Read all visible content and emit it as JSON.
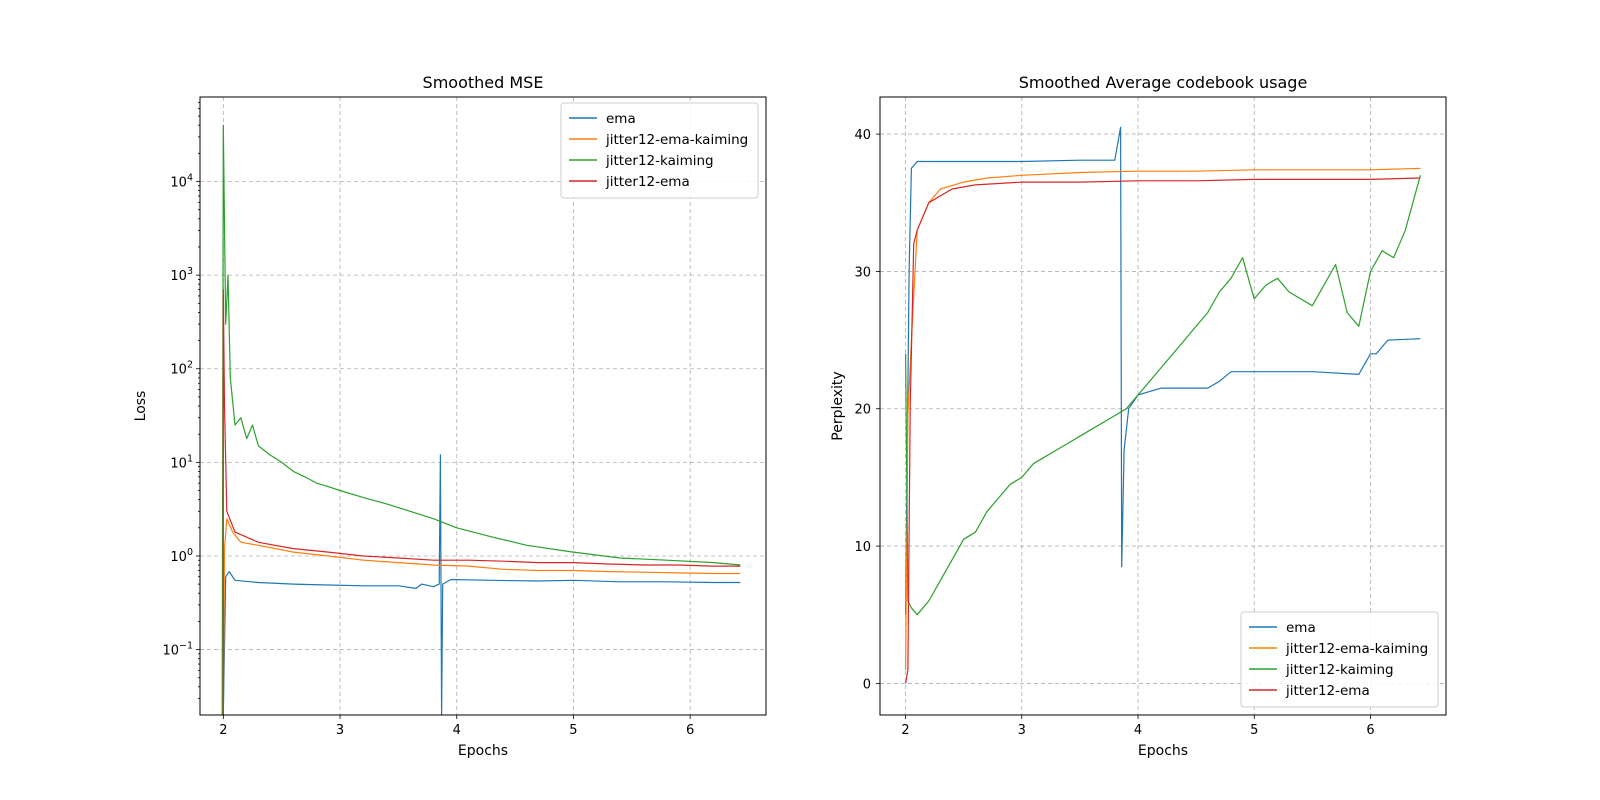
{
  "chart_data": [
    {
      "type": "line",
      "title": "Smoothed MSE",
      "xlabel": "Epochs",
      "ylabel": "Loss",
      "xlim": [
        1.8,
        6.65
      ],
      "ylim": [
        0.02,
        80000
      ],
      "yscale": "log",
      "xticks": [
        2,
        3,
        4,
        5,
        6
      ],
      "yticks": [
        {
          "value": 0.1,
          "mantissa": "10",
          "exp": "−1"
        },
        {
          "value": 1,
          "mantissa": "10",
          "exp": "0"
        },
        {
          "value": 10,
          "mantissa": "10",
          "exp": "1"
        },
        {
          "value": 100,
          "mantissa": "10",
          "exp": "2"
        },
        {
          "value": 1000,
          "mantissa": "10",
          "exp": "3"
        },
        {
          "value": 10000,
          "mantissa": "10",
          "exp": "4"
        }
      ],
      "grid": true,
      "legend_position": "top-right",
      "series": [
        {
          "name": "ema",
          "color": "#1f77b4",
          "points": [
            [
              2.0,
              0.02
            ],
            [
              2.02,
              0.6
            ],
            [
              2.05,
              0.68
            ],
            [
              2.1,
              0.55
            ],
            [
              2.3,
              0.52
            ],
            [
              2.6,
              0.5
            ],
            [
              2.9,
              0.49
            ],
            [
              3.2,
              0.48
            ],
            [
              3.5,
              0.48
            ],
            [
              3.65,
              0.45
            ],
            [
              3.7,
              0.5
            ],
            [
              3.8,
              0.47
            ],
            [
              3.85,
              0.5
            ],
            [
              3.86,
              12
            ],
            [
              3.87,
              0.02
            ],
            [
              3.88,
              0.5
            ],
            [
              3.95,
              0.56
            ],
            [
              4.3,
              0.55
            ],
            [
              4.7,
              0.54
            ],
            [
              5.0,
              0.55
            ],
            [
              5.4,
              0.53
            ],
            [
              5.8,
              0.53
            ],
            [
              6.2,
              0.52
            ],
            [
              6.43,
              0.52
            ]
          ]
        },
        {
          "name": "jitter12-ema-kaiming",
          "color": "#ff7f0e",
          "points": [
            [
              2.0,
              0.02
            ],
            [
              2.01,
              1.2
            ],
            [
              2.03,
              2.5
            ],
            [
              2.08,
              1.8
            ],
            [
              2.15,
              1.4
            ],
            [
              2.3,
              1.3
            ],
            [
              2.6,
              1.1
            ],
            [
              2.9,
              1.0
            ],
            [
              3.2,
              0.9
            ],
            [
              3.5,
              0.85
            ],
            [
              3.8,
              0.8
            ],
            [
              4.1,
              0.78
            ],
            [
              4.4,
              0.72
            ],
            [
              4.7,
              0.7
            ],
            [
              5.0,
              0.7
            ],
            [
              5.3,
              0.68
            ],
            [
              5.6,
              0.67
            ],
            [
              5.9,
              0.66
            ],
            [
              6.2,
              0.65
            ],
            [
              6.43,
              0.65
            ]
          ]
        },
        {
          "name": "jitter12-kaiming",
          "color": "#2ca02c",
          "points": [
            [
              1.99,
              0.02
            ],
            [
              2.0,
              40000
            ],
            [
              2.02,
              300
            ],
            [
              2.04,
              1000
            ],
            [
              2.06,
              80
            ],
            [
              2.1,
              25
            ],
            [
              2.15,
              30
            ],
            [
              2.2,
              18
            ],
            [
              2.25,
              25
            ],
            [
              2.3,
              15
            ],
            [
              2.4,
              12
            ],
            [
              2.5,
              10
            ],
            [
              2.6,
              8
            ],
            [
              2.7,
              7
            ],
            [
              2.8,
              6
            ],
            [
              2.9,
              5.5
            ],
            [
              3.0,
              5
            ],
            [
              3.2,
              4.2
            ],
            [
              3.4,
              3.6
            ],
            [
              3.6,
              3.0
            ],
            [
              3.8,
              2.5
            ],
            [
              4.0,
              2.0
            ],
            [
              4.3,
              1.6
            ],
            [
              4.6,
              1.3
            ],
            [
              5.0,
              1.1
            ],
            [
              5.4,
              0.95
            ],
            [
              5.8,
              0.9
            ],
            [
              6.2,
              0.85
            ],
            [
              6.43,
              0.8
            ]
          ]
        },
        {
          "name": "jitter12-ema",
          "color": "#d62728",
          "points": [
            [
              2.0,
              0.02
            ],
            [
              2.0,
              700
            ],
            [
              2.01,
              40
            ],
            [
              2.03,
              3
            ],
            [
              2.1,
              1.8
            ],
            [
              2.3,
              1.4
            ],
            [
              2.6,
              1.2
            ],
            [
              2.9,
              1.1
            ],
            [
              3.2,
              1.0
            ],
            [
              3.5,
              0.95
            ],
            [
              3.8,
              0.9
            ],
            [
              4.1,
              0.9
            ],
            [
              4.4,
              0.88
            ],
            [
              4.7,
              0.85
            ],
            [
              5.0,
              0.85
            ],
            [
              5.3,
              0.82
            ],
            [
              5.6,
              0.8
            ],
            [
              5.9,
              0.8
            ],
            [
              6.2,
              0.78
            ],
            [
              6.43,
              0.78
            ]
          ]
        }
      ]
    },
    {
      "type": "line",
      "title": "Smoothed Average codebook usage",
      "xlabel": "Epochs",
      "ylabel": "Perplexity",
      "xlim": [
        1.78,
        6.65
      ],
      "ylim": [
        -2.3,
        42.7
      ],
      "yscale": "linear",
      "xticks": [
        2,
        3,
        4,
        5,
        6
      ],
      "yticks": [
        0,
        10,
        20,
        30,
        40
      ],
      "grid": true,
      "legend_position": "bottom-right",
      "series": [
        {
          "name": "ema",
          "color": "#1f77b4",
          "points": [
            [
              2.0,
              5
            ],
            [
              2.03,
              30
            ],
            [
              2.05,
              37.5
            ],
            [
              2.1,
              38
            ],
            [
              2.5,
              38
            ],
            [
              3.0,
              38
            ],
            [
              3.5,
              38.1
            ],
            [
              3.8,
              38.1
            ],
            [
              3.85,
              40.5
            ],
            [
              3.86,
              8.5
            ],
            [
              3.88,
              17
            ],
            [
              3.92,
              20
            ],
            [
              4.0,
              21
            ],
            [
              4.2,
              21.5
            ],
            [
              4.6,
              21.5
            ],
            [
              4.7,
              22
            ],
            [
              4.8,
              22.7
            ],
            [
              5.0,
              22.7
            ],
            [
              5.5,
              22.7
            ],
            [
              5.9,
              22.5
            ],
            [
              6.0,
              24
            ],
            [
              6.05,
              24
            ],
            [
              6.1,
              24.5
            ],
            [
              6.15,
              25
            ],
            [
              6.43,
              25.1
            ]
          ]
        },
        {
          "name": "jitter12-ema-kaiming",
          "color": "#ff7f0e",
          "points": [
            [
              2.0,
              1
            ],
            [
              2.02,
              19.5
            ],
            [
              2.05,
              25
            ],
            [
              2.1,
              33
            ],
            [
              2.2,
              35
            ],
            [
              2.3,
              36
            ],
            [
              2.5,
              36.5
            ],
            [
              2.7,
              36.8
            ],
            [
              3.0,
              37
            ],
            [
              3.5,
              37.2
            ],
            [
              4.0,
              37.3
            ],
            [
              4.5,
              37.3
            ],
            [
              5.0,
              37.4
            ],
            [
              5.5,
              37.4
            ],
            [
              6.0,
              37.4
            ],
            [
              6.43,
              37.5
            ]
          ]
        },
        {
          "name": "jitter12-kaiming",
          "color": "#2ca02c",
          "points": [
            [
              2.0,
              24
            ],
            [
              2.02,
              6
            ],
            [
              2.05,
              5.5
            ],
            [
              2.1,
              5
            ],
            [
              2.2,
              6
            ],
            [
              2.3,
              7.5
            ],
            [
              2.4,
              9
            ],
            [
              2.5,
              10.5
            ],
            [
              2.6,
              11
            ],
            [
              2.7,
              12.5
            ],
            [
              2.8,
              13.5
            ],
            [
              2.9,
              14.5
            ],
            [
              3.0,
              15
            ],
            [
              3.1,
              16
            ],
            [
              3.2,
              16.5
            ],
            [
              3.3,
              17
            ],
            [
              3.4,
              17.5
            ],
            [
              3.5,
              18
            ],
            [
              3.6,
              18.5
            ],
            [
              3.7,
              19
            ],
            [
              3.8,
              19.5
            ],
            [
              3.9,
              20
            ],
            [
              4.0,
              21
            ],
            [
              4.1,
              22
            ],
            [
              4.2,
              23
            ],
            [
              4.3,
              24
            ],
            [
              4.4,
              25
            ],
            [
              4.5,
              26
            ],
            [
              4.6,
              27
            ],
            [
              4.7,
              28.5
            ],
            [
              4.8,
              29.5
            ],
            [
              4.9,
              31
            ],
            [
              5.0,
              28
            ],
            [
              5.1,
              29
            ],
            [
              5.2,
              29.5
            ],
            [
              5.3,
              28.5
            ],
            [
              5.4,
              28
            ],
            [
              5.5,
              27.5
            ],
            [
              5.6,
              29
            ],
            [
              5.7,
              30.5
            ],
            [
              5.8,
              27
            ],
            [
              5.9,
              26
            ],
            [
              6.0,
              30
            ],
            [
              6.1,
              31.5
            ],
            [
              6.2,
              31
            ],
            [
              6.3,
              33
            ],
            [
              6.43,
              37
            ]
          ]
        },
        {
          "name": "jitter12-ema",
          "color": "#d62728",
          "points": [
            [
              2.0,
              0
            ],
            [
              2.02,
              1
            ],
            [
              2.04,
              20
            ],
            [
              2.07,
              32
            ],
            [
              2.1,
              33
            ],
            [
              2.2,
              35
            ],
            [
              2.4,
              36
            ],
            [
              2.6,
              36.3
            ],
            [
              3.0,
              36.5
            ],
            [
              3.5,
              36.5
            ],
            [
              4.0,
              36.6
            ],
            [
              4.5,
              36.6
            ],
            [
              5.0,
              36.7
            ],
            [
              5.5,
              36.7
            ],
            [
              6.0,
              36.7
            ],
            [
              6.43,
              36.8
            ]
          ]
        }
      ]
    }
  ]
}
